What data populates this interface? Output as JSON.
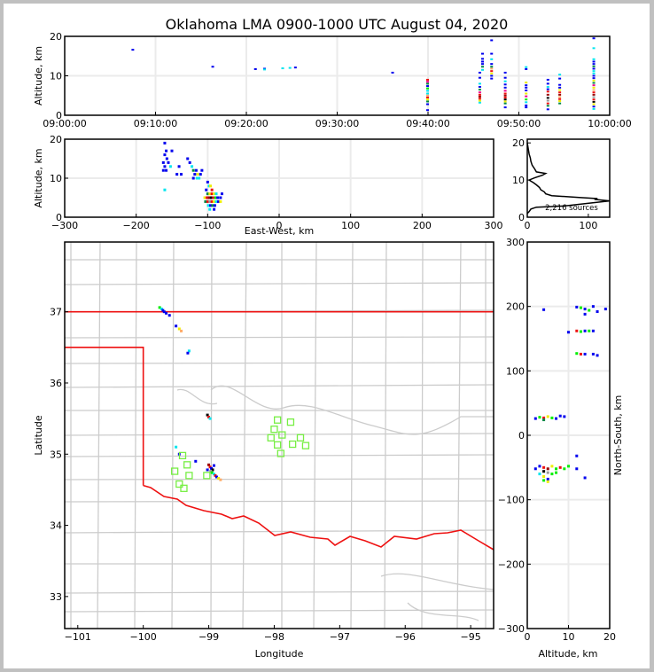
{
  "title": "Oklahoma LMA 0900-1000 UTC August 04, 2020",
  "colors": {
    "frame": "#c0c0c0",
    "grid": "#ebebeb",
    "county": "#cccccc",
    "state": "#ee1111",
    "station": "#77ee44",
    "palette": [
      "#0000ee",
      "#00e5ee",
      "#008844",
      "#00ee00",
      "#eeee00",
      "#ffaa66",
      "#ee1111",
      "#ee0088",
      "#990000",
      "#000000",
      "#999999"
    ]
  },
  "chart_data": [
    {
      "id": "time-height",
      "type": "scatter",
      "xlabel": "",
      "ylabel": "Altitude, km",
      "xlim_minutes": [
        0,
        60
      ],
      "ylim": [
        0,
        20
      ],
      "xtick_labels": [
        "09:00:00",
        "09:10:00",
        "09:20:00",
        "09:30:00",
        "09:40:00",
        "09:50:00",
        "10:00:00"
      ],
      "yticks": [
        0,
        10,
        20
      ],
      "grid": true,
      "columns": [
        {
          "t": 7.5,
          "alts": [
            16.6
          ],
          "c": [
            0
          ]
        },
        {
          "t": 16.3,
          "alts": [
            12.3
          ],
          "c": [
            0
          ]
        },
        {
          "t": 21.0,
          "alts": [
            11.7
          ],
          "c": [
            0
          ]
        },
        {
          "t": 22.0,
          "alts": [
            11.8,
            11.6
          ],
          "c": [
            0,
            1
          ]
        },
        {
          "t": 24.0,
          "alts": [
            11.9
          ],
          "c": [
            1
          ]
        },
        {
          "t": 24.8,
          "alts": [
            12.0
          ],
          "c": [
            1
          ]
        },
        {
          "t": 25.4,
          "alts": [
            12.1
          ],
          "c": [
            0
          ]
        },
        {
          "t": 36.1,
          "alts": [
            10.8
          ],
          "c": [
            0
          ]
        },
        {
          "t": 39.95,
          "alts": [
            1.3,
            2.8,
            3.5,
            4.0,
            4.5,
            5.0,
            5.5,
            6.2,
            6.8,
            7.4,
            8.0,
            8.5,
            9.0
          ],
          "c": [
            0,
            0,
            2,
            4,
            6,
            5,
            1,
            1,
            3,
            0,
            2,
            7,
            6
          ]
        },
        {
          "t": 45.7,
          "alts": [
            3.2,
            3.7,
            4.2,
            4.7,
            5.2,
            5.8,
            6.5,
            7.2,
            8.0,
            9.5,
            10.8
          ],
          "c": [
            1,
            4,
            6,
            8,
            6,
            7,
            2,
            0,
            1,
            0,
            0
          ]
        },
        {
          "t": 46.0,
          "alts": [
            11.5,
            12.3,
            13.0,
            13.6,
            14.3,
            15.6
          ],
          "c": [
            1,
            2,
            0,
            0,
            0,
            0
          ]
        },
        {
          "t": 47.0,
          "alts": [
            9.3,
            10.0,
            10.6,
            11.2,
            11.8,
            12.3,
            13.0,
            14.2,
            15.6,
            19.0
          ],
          "c": [
            0,
            0,
            4,
            6,
            5,
            2,
            0,
            1,
            0,
            0
          ]
        },
        {
          "t": 48.5,
          "alts": [
            2.0,
            3.0,
            3.5,
            4.0,
            4.5,
            5.0,
            5.5,
            6.2,
            7.0,
            7.8,
            8.6,
            9.5,
            10.8
          ],
          "c": [
            0,
            2,
            4,
            9,
            6,
            8,
            6,
            7,
            0,
            0,
            1,
            0,
            0
          ]
        },
        {
          "t": 50.8,
          "alts": [
            2.0,
            2.5,
            3.3,
            4.0,
            4.8,
            5.5,
            6.3,
            7.0,
            7.6,
            8.3,
            11.7,
            12.2
          ],
          "c": [
            0,
            0,
            1,
            3,
            7,
            4,
            0,
            0,
            0,
            4,
            0,
            1
          ]
        },
        {
          "t": 53.2,
          "alts": [
            1.5,
            2.4,
            3.0,
            3.7,
            4.4,
            5.2,
            6.0,
            6.6,
            7.2,
            8.0,
            9.0
          ],
          "c": [
            0,
            2,
            6,
            10,
            9,
            8,
            6,
            0,
            1,
            0,
            0
          ]
        },
        {
          "t": 54.5,
          "alts": [
            3.0,
            3.6,
            4.1,
            4.6,
            5.2,
            5.8,
            6.4,
            7.0,
            7.7,
            9.3,
            10.3
          ],
          "c": [
            2,
            4,
            6,
            5,
            8,
            6,
            4,
            0,
            0,
            0,
            1
          ]
        },
        {
          "t": 58.25,
          "alts": [
            1.6,
            2.2,
            2.8,
            3.4,
            4.0,
            4.6,
            5.2,
            5.8,
            6.4,
            7.0,
            7.6,
            8.2,
            8.8,
            9.4,
            10.0,
            10.6,
            11.2,
            11.8,
            12.4,
            13.0,
            13.6,
            14.2,
            17.0,
            19.5
          ],
          "c": [
            1,
            0,
            4,
            9,
            6,
            10,
            8,
            6,
            5,
            4,
            7,
            2,
            4,
            0,
            0,
            1,
            1,
            0,
            2,
            0,
            0,
            1,
            1,
            0
          ]
        }
      ]
    },
    {
      "id": "ew-height",
      "type": "scatter",
      "xlabel": "East-West, km",
      "ylabel": "Altitude, km",
      "xlim": [
        -300,
        300
      ],
      "ylim": [
        0,
        20
      ],
      "xticks": [
        -300,
        -200,
        -100,
        0,
        100,
        200,
        300
      ],
      "yticks": [
        0,
        10,
        20
      ],
      "grid": true,
      "points": [
        [
          -160,
          19,
          0
        ],
        [
          -158,
          17,
          0
        ],
        [
          -160,
          16,
          0
        ],
        [
          -157,
          15,
          0
        ],
        [
          -162,
          14,
          0
        ],
        [
          -155,
          14,
          0
        ],
        [
          -160,
          13,
          0
        ],
        [
          -158,
          12,
          0
        ],
        [
          -152,
          13,
          1
        ],
        [
          -162,
          12,
          0
        ],
        [
          -150,
          17,
          0
        ],
        [
          -140,
          13,
          0
        ],
        [
          -143,
          11,
          0
        ],
        [
          -137,
          11,
          0
        ],
        [
          -128,
          15,
          0
        ],
        [
          -125,
          14,
          0
        ],
        [
          -122,
          13,
          1
        ],
        [
          -120,
          12,
          2
        ],
        [
          -118,
          11,
          0
        ],
        [
          -116,
          12,
          0
        ],
        [
          -114,
          11,
          4
        ],
        [
          -112,
          10,
          1
        ],
        [
          -110,
          11,
          0
        ],
        [
          -115,
          10,
          1
        ],
        [
          -108,
          12,
          0
        ],
        [
          -120,
          10,
          0
        ],
        [
          -100,
          9,
          0
        ],
        [
          -98,
          8,
          1
        ],
        [
          -96,
          8,
          4
        ],
        [
          -94,
          7,
          6
        ],
        [
          -102,
          7,
          0
        ],
        [
          -100,
          6,
          2
        ],
        [
          -97,
          6,
          4
        ],
        [
          -94,
          6,
          6
        ],
        [
          -91,
          6,
          4
        ],
        [
          -88,
          6,
          1
        ],
        [
          -104,
          5,
          4
        ],
        [
          -101,
          5,
          6
        ],
        [
          -98,
          5,
          8
        ],
        [
          -95,
          5,
          9
        ],
        [
          -92,
          5,
          6
        ],
        [
          -89,
          5,
          3
        ],
        [
          -86,
          5,
          0
        ],
        [
          -103,
          4,
          2
        ],
        [
          -100,
          4,
          6
        ],
        [
          -97,
          4,
          10
        ],
        [
          -94,
          4,
          6
        ],
        [
          -91,
          4,
          4
        ],
        [
          -88,
          4,
          1
        ],
        [
          -85,
          4,
          0
        ],
        [
          -82,
          4,
          4
        ],
        [
          -99,
          3,
          1
        ],
        [
          -96,
          3,
          0
        ],
        [
          -93,
          3,
          2
        ],
        [
          -90,
          3,
          0
        ],
        [
          -97,
          2,
          1
        ],
        [
          -91,
          2,
          0
        ],
        [
          -80,
          6,
          0
        ],
        [
          -82,
          5,
          0
        ],
        [
          -160,
          7,
          1
        ]
      ]
    },
    {
      "id": "altitude-histogram",
      "type": "line",
      "xlim": [
        0,
        135
      ],
      "ylim": [
        0,
        21
      ],
      "xticks": [
        0,
        100
      ],
      "yticks": [
        0,
        10,
        20
      ],
      "annotation": "2,216 sources",
      "profile": [
        [
          0,
          1.0
        ],
        [
          3,
          1.5
        ],
        [
          6,
          2.2
        ],
        [
          15,
          2.7
        ],
        [
          60,
          3.0
        ],
        [
          135,
          4.4
        ],
        [
          110,
          4.8
        ],
        [
          115,
          5.0
        ],
        [
          85,
          5.3
        ],
        [
          40,
          5.8
        ],
        [
          30,
          6.3
        ],
        [
          28,
          6.8
        ],
        [
          22,
          7.4
        ],
        [
          20,
          8.0
        ],
        [
          15,
          8.7
        ],
        [
          10,
          9.3
        ],
        [
          3,
          10.0
        ],
        [
          12,
          10.6
        ],
        [
          25,
          11.3
        ],
        [
          30,
          11.8
        ],
        [
          15,
          12.2
        ],
        [
          12,
          13.0
        ],
        [
          8,
          14.0
        ],
        [
          6,
          15.0
        ],
        [
          5,
          16.0
        ],
        [
          3,
          17.0
        ],
        [
          2,
          18.0
        ],
        [
          1,
          19.0
        ],
        [
          0,
          20.0
        ]
      ]
    },
    {
      "id": "plan-view-map",
      "type": "scatter",
      "xlabel": "Longitude",
      "ylabel": "Latitude",
      "xlim": [
        -101.2,
        -94.65
      ],
      "ylim": [
        32.55,
        37.98
      ],
      "xticks": [
        -101,
        -100,
        -99,
        -98,
        -97,
        -96,
        -95
      ],
      "yticks": [
        33,
        34,
        35,
        36,
        37
      ],
      "sources": [
        [
          -99.75,
          37.06,
          3
        ],
        [
          -99.72,
          37.04,
          1
        ],
        [
          -99.7,
          37.02,
          0
        ],
        [
          -99.68,
          37.0,
          0
        ],
        [
          -99.65,
          36.98,
          0
        ],
        [
          -99.6,
          36.95,
          0
        ],
        [
          -99.45,
          36.76,
          4
        ],
        [
          -99.42,
          36.73,
          5
        ],
        [
          -99.5,
          36.8,
          0
        ],
        [
          -99.3,
          36.45,
          1
        ],
        [
          -99.32,
          36.42,
          0
        ],
        [
          -99.02,
          35.55,
          9
        ],
        [
          -99.0,
          35.52,
          6
        ],
        [
          -98.98,
          35.5,
          1
        ],
        [
          -99.0,
          34.85,
          8
        ],
        [
          -98.98,
          34.82,
          6
        ],
        [
          -98.96,
          34.8,
          0
        ],
        [
          -98.94,
          34.78,
          9
        ],
        [
          -98.97,
          34.76,
          10
        ],
        [
          -98.95,
          34.74,
          3
        ],
        [
          -98.92,
          34.72,
          1
        ],
        [
          -98.9,
          34.7,
          6
        ],
        [
          -98.88,
          34.68,
          0
        ],
        [
          -98.85,
          34.66,
          4
        ],
        [
          -98.82,
          34.64,
          5
        ],
        [
          -99.02,
          34.78,
          0
        ],
        [
          -98.92,
          34.84,
          0
        ],
        [
          -99.5,
          35.1,
          1
        ],
        [
          -99.45,
          35.0,
          0
        ],
        [
          -99.2,
          34.9,
          0
        ]
      ],
      "stations": [
        [
          -97.95,
          35.48
        ],
        [
          -97.75,
          35.45
        ],
        [
          -98.0,
          35.35
        ],
        [
          -98.05,
          35.23
        ],
        [
          -97.88,
          35.27
        ],
        [
          -97.6,
          35.23
        ],
        [
          -97.95,
          35.13
        ],
        [
          -97.72,
          35.14
        ],
        [
          -97.52,
          35.12
        ],
        [
          -97.9,
          35.01
        ],
        [
          -99.4,
          34.98
        ],
        [
          -99.33,
          34.85
        ],
        [
          -99.52,
          34.76
        ],
        [
          -99.3,
          34.7
        ],
        [
          -99.45,
          34.58
        ],
        [
          -99.38,
          34.52
        ],
        [
          -99.03,
          34.7
        ]
      ]
    },
    {
      "id": "ns-altitude",
      "type": "scatter",
      "xlabel": "Altitude, km",
      "ylabel": "North-South, km",
      "xlim": [
        0,
        20
      ],
      "ylim": [
        -300,
        300
      ],
      "xticks": [
        0,
        10,
        20
      ],
      "yticks": [
        -300,
        -200,
        -100,
        0,
        100,
        200,
        300
      ],
      "grid": true,
      "points": [
        [
          4,
          195,
          0
        ],
        [
          12,
          199,
          0
        ],
        [
          13,
          198,
          3
        ],
        [
          14,
          196,
          0
        ],
        [
          15,
          194,
          3
        ],
        [
          16,
          200,
          0
        ],
        [
          17,
          192,
          0
        ],
        [
          14,
          188,
          0
        ],
        [
          19,
          196,
          0
        ],
        [
          12,
          162,
          6
        ],
        [
          13,
          161,
          3
        ],
        [
          14,
          162,
          0
        ],
        [
          15,
          162,
          3
        ],
        [
          16,
          162,
          0
        ],
        [
          10,
          160,
          0
        ],
        [
          12,
          127,
          3
        ],
        [
          13,
          126,
          6
        ],
        [
          14,
          126,
          0
        ],
        [
          16,
          126,
          0
        ],
        [
          17,
          124,
          0
        ],
        [
          3,
          28,
          3
        ],
        [
          4,
          27,
          6
        ],
        [
          5,
          29,
          4
        ],
        [
          6,
          27,
          3
        ],
        [
          7,
          26,
          0
        ],
        [
          2,
          26,
          0
        ],
        [
          4,
          24,
          2
        ],
        [
          8,
          30,
          0
        ],
        [
          9,
          29,
          0
        ],
        [
          3,
          -48,
          0
        ],
        [
          4,
          -50,
          6
        ],
        [
          5,
          -52,
          8
        ],
        [
          6,
          -48,
          4
        ],
        [
          7,
          -52,
          3
        ],
        [
          8,
          -50,
          6
        ],
        [
          4,
          -56,
          9
        ],
        [
          5,
          -58,
          10
        ],
        [
          6,
          -60,
          3
        ],
        [
          3,
          -60,
          1
        ],
        [
          4,
          -64,
          4
        ],
        [
          5,
          -68,
          0
        ],
        [
          7,
          -58,
          3
        ],
        [
          9,
          -52,
          3
        ],
        [
          10,
          -48,
          3
        ],
        [
          12,
          -52,
          0
        ],
        [
          14,
          -66,
          0
        ],
        [
          2,
          -52,
          0
        ],
        [
          4,
          -70,
          3
        ],
        [
          5,
          -72,
          4
        ],
        [
          12,
          -32,
          0
        ]
      ]
    }
  ]
}
